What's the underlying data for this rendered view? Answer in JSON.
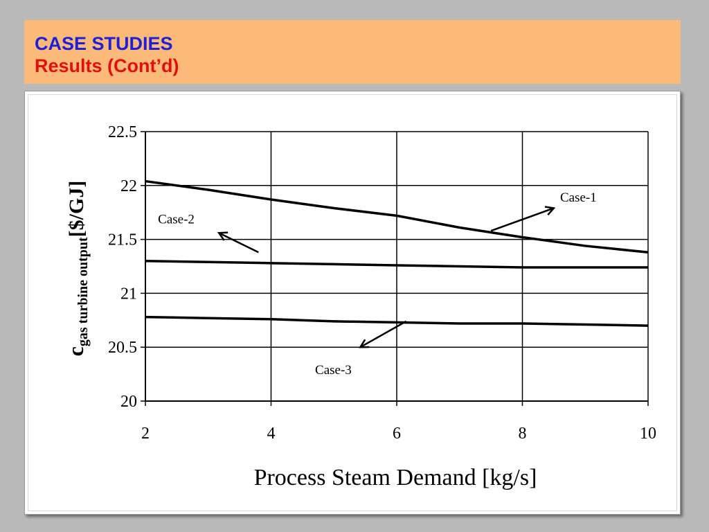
{
  "slide": {
    "title": "CASE STUDIES",
    "subtitle": "Results (Cont’d)",
    "title_color": "#1f1fd6",
    "subtitle_color": "#e01010",
    "header_color": "#fbb97a"
  },
  "chart_data": {
    "type": "line",
    "title": "",
    "xlabel": "Process Steam Demand [kg/s]",
    "ylabel_main": "c",
    "ylabel_sub": "gas turbine output",
    "ylabel_unit": "[$/GJ]",
    "xlim": [
      2,
      10
    ],
    "ylim": [
      20,
      22.5
    ],
    "x_ticks": [
      2,
      4,
      6,
      8,
      10
    ],
    "y_ticks": [
      20,
      20.5,
      21,
      21.5,
      22,
      22.5
    ],
    "y_tick_labels": [
      "20",
      "20.5",
      "21",
      "21.5",
      "22",
      "22.5"
    ],
    "grid": true,
    "legend": "none",
    "series": [
      {
        "name": "Case-1",
        "x": [
          2,
          3,
          4,
          5,
          6,
          7,
          8,
          9,
          10
        ],
        "y": [
          22.04,
          21.96,
          21.87,
          21.79,
          21.72,
          21.61,
          21.52,
          21.44,
          21.38
        ]
      },
      {
        "name": "Case-2",
        "x": [
          2,
          3,
          4,
          5,
          6,
          7,
          8,
          9,
          10
        ],
        "y": [
          21.3,
          21.29,
          21.28,
          21.27,
          21.26,
          21.25,
          21.24,
          21.24,
          21.24
        ]
      },
      {
        "name": "Case-3",
        "x": [
          2,
          3,
          4,
          5,
          6,
          7,
          8,
          9,
          10
        ],
        "y": [
          20.78,
          20.77,
          20.76,
          20.74,
          20.73,
          20.72,
          20.72,
          20.71,
          20.7
        ]
      }
    ],
    "annotations": [
      {
        "text": "Case-1",
        "series": "Case-1"
      },
      {
        "text": "Case-2",
        "series": "Case-2"
      },
      {
        "text": "Case-3",
        "series": "Case-3"
      }
    ]
  }
}
